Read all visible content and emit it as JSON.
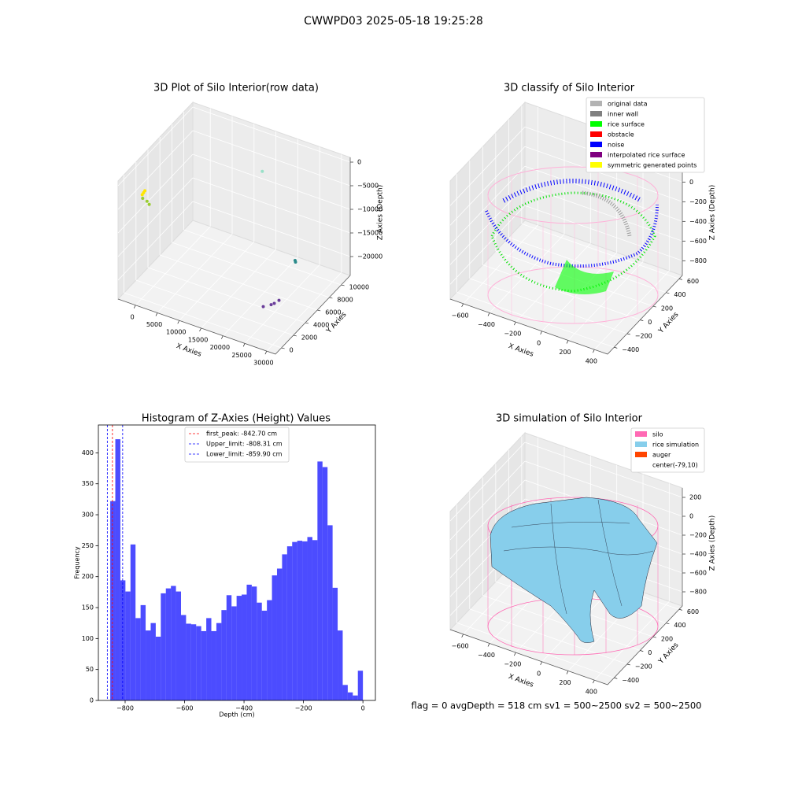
{
  "title": "CWWPD03 2025-05-18 19:25:28",
  "footer": "flag = 0     avgDepth = 518 cm  sv1 = 500~2500  sv2 = 500~2500",
  "chart_data": [
    {
      "type": "scatter3d",
      "title": "3D Plot of Silo Interior(row data)",
      "xlabel": "X Axies",
      "ylabel": "Y Axies",
      "zlabel": "Z Axies (Depth)",
      "xlim": [
        -4000,
        32000
      ],
      "ylim": [
        -1000,
        11500
      ],
      "zlim": [
        -24000,
        1000
      ],
      "xticks": [
        0,
        5000,
        10000,
        15000,
        20000,
        25000,
        30000
      ],
      "yticks": [
        0,
        2000,
        4000,
        6000,
        8000,
        10000
      ],
      "zticks": [
        0,
        {
          "value": -5000,
          "label": "−5000"
        },
        {
          "value": -10000,
          "label": "−10000"
        },
        {
          "value": -15000,
          "label": "−15000"
        },
        {
          "value": -20000,
          "label": "−20000"
        }
      ],
      "series": [
        {
          "color": "#ffe600",
          "x": [
            -3300,
            -3200,
            -3400
          ],
          "y": [
            2750,
            2900,
            2600
          ],
          "z": [
            -6250,
            -6000,
            -6500
          ]
        },
        {
          "color": "#9acd32",
          "x": [
            -3500,
            -2500,
            -2000
          ],
          "y": [
            2750,
            2750,
            2750
          ],
          "z": [
            -7500,
            -7800,
            -8300
          ]
        },
        {
          "color": "#98e0c8",
          "x": [
            13600
          ],
          "y": [
            10250
          ],
          "z": [
            -6250
          ]
        },
        {
          "color": "#2a8a8a",
          "x": [
            21200,
            21100
          ],
          "y": [
            10250,
            10250
          ],
          "z": [
            -23000,
            -22700
          ]
        },
        {
          "color": "#6a3d9a",
          "x": [
            24080,
            25880,
            26600,
            27680
          ],
          "y": [
            2750,
            2750,
            2750,
            2750
          ],
          "z": [
            -21500,
            -20500,
            -20000,
            -19000
          ]
        }
      ]
    },
    {
      "type": "classify3d",
      "title": "3D classify of Silo Interior",
      "xlabel": "X Axies",
      "ylabel": "Y Axies",
      "zlabel": "Z Axies (Depth)",
      "xlim": [
        -700,
        500
      ],
      "ylim": [
        -500,
        650
      ],
      "zlim": [
        -950,
        250
      ],
      "xticks": [
        {
          "value": -600,
          "label": "−600"
        },
        {
          "value": -400,
          "label": "−400"
        },
        {
          "value": -200,
          "label": "−200"
        },
        0,
        200,
        400
      ],
      "yticks": [
        {
          "value": -400,
          "label": "−400"
        },
        {
          "value": -200,
          "label": "−200"
        },
        0,
        200,
        400,
        600
      ],
      "zticks": [
        0,
        {
          "value": -200,
          "label": "−200"
        },
        {
          "value": -400,
          "label": "−400"
        },
        {
          "value": -600,
          "label": "−600"
        },
        {
          "value": -800,
          "label": "−800"
        }
      ],
      "legend": [
        {
          "name": "original data",
          "color": "#b3b3b3"
        },
        {
          "name": "inner wall",
          "color": "#808080"
        },
        {
          "name": "rice surface",
          "color": "#00ff00"
        },
        {
          "name": "obstacle",
          "color": "#ff0000"
        },
        {
          "name": "noise",
          "color": "#0000ff"
        },
        {
          "name": "interpolated rice surface",
          "color": "#800080"
        },
        {
          "name": "symmetric generated points",
          "color": "#ffff00"
        }
      ]
    },
    {
      "type": "histogram",
      "title": "Histogram of Z-Axies (Height) Values",
      "xlabel": "Depth (cm)",
      "ylabel": "Frequency",
      "color": "#0000ff",
      "alpha": 0.7,
      "xlim": [
        -890,
        42
      ],
      "ylim": [
        0,
        445
      ],
      "xticks": [
        {
          "value": -800,
          "label": "−800"
        },
        {
          "value": -600,
          "label": "−600"
        },
        {
          "value": -400,
          "label": "−400"
        },
        {
          "value": -200,
          "label": "−200"
        },
        0
      ],
      "yticks": [
        0,
        50,
        100,
        150,
        200,
        250,
        300,
        350,
        400
      ],
      "bins": [
        -850,
        -833,
        -816,
        -799,
        -782,
        -765,
        -748,
        -731,
        -714,
        -697,
        -680,
        -663,
        -646,
        -629,
        -612,
        -595,
        -578,
        -561,
        -544,
        -527,
        -510,
        -493,
        -476,
        -459,
        -442,
        -425,
        -408,
        -391,
        -374,
        -357,
        -340,
        -323,
        -306,
        -289,
        -272,
        -255,
        -238,
        -221,
        -204,
        -187,
        -170,
        -153,
        -136,
        -119,
        -102,
        -85,
        -68,
        -51,
        -34,
        -17,
        0
      ],
      "values": [
        322,
        422,
        194,
        176,
        252,
        133,
        154,
        113,
        125,
        103,
        173,
        181,
        185,
        176,
        138,
        124,
        123,
        120,
        112,
        133,
        112,
        125,
        146,
        170,
        152,
        169,
        171,
        187,
        184,
        158,
        145,
        162,
        202,
        213,
        236,
        249,
        256,
        258,
        257,
        264,
        259,
        386,
        377,
        283,
        182,
        113,
        25,
        13,
        8,
        48
      ],
      "vlines": [
        {
          "label": "first_peak: -842.70 cm",
          "value": -842.7,
          "color": "#ff0000"
        },
        {
          "label": "Upper_limit: -808.31 cm",
          "value": -808.31,
          "color": "#0000ff"
        },
        {
          "label": "Lower_limit: -859.90 cm",
          "value": -859.9,
          "color": "#0000ff"
        }
      ]
    },
    {
      "type": "surface3d",
      "title": "3D simulation of Silo Interior",
      "xlabel": "X Axies",
      "ylabel": "Y Axies",
      "zlabel": "Z Axies (Depth)",
      "xlim": [
        -700,
        500
      ],
      "ylim": [
        -500,
        650
      ],
      "zlim": [
        -950,
        300
      ],
      "xticks": [
        {
          "value": -600,
          "label": "−600"
        },
        {
          "value": -400,
          "label": "−400"
        },
        {
          "value": -200,
          "label": "−200"
        },
        0,
        200,
        400
      ],
      "yticks": [
        {
          "value": -400,
          "label": "−400"
        },
        {
          "value": -200,
          "label": "−200"
        },
        0,
        200,
        400,
        600
      ],
      "zticks": [
        200,
        0,
        {
          "value": -200,
          "label": "−200"
        },
        {
          "value": -400,
          "label": "−400"
        },
        {
          "value": -600,
          "label": "−600"
        },
        {
          "value": -800,
          "label": "−800"
        }
      ],
      "legend": [
        {
          "name": "silo",
          "color": "#ff69b4"
        },
        {
          "name": "rice simulation",
          "color": "#87ceeb"
        },
        {
          "name": "auger",
          "color": "#ff4500"
        },
        {
          "name": "center(-79,10)",
          "color": "#ffffff"
        }
      ]
    }
  ]
}
